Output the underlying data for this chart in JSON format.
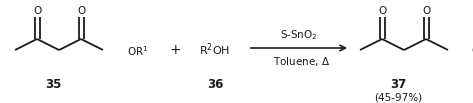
{
  "fig_width": 4.73,
  "fig_height": 1.03,
  "dpi": 100,
  "bg_color": "#ffffff",
  "line_color": "#1a1a1a",
  "line_width": 1.3,
  "compound35_label": "35",
  "compound36_label": "36",
  "compound37_label": "37",
  "yield_label": "(45-97%)",
  "plus_sign": "+",
  "r2oh_label": "R$^{2}$OH",
  "reagent1": "S-SnO$_2$",
  "reagent2": "Toluene, $\\Delta$",
  "label_fontsize": 8.5,
  "text_fontsize": 8.0,
  "o_fontsize": 7.5
}
